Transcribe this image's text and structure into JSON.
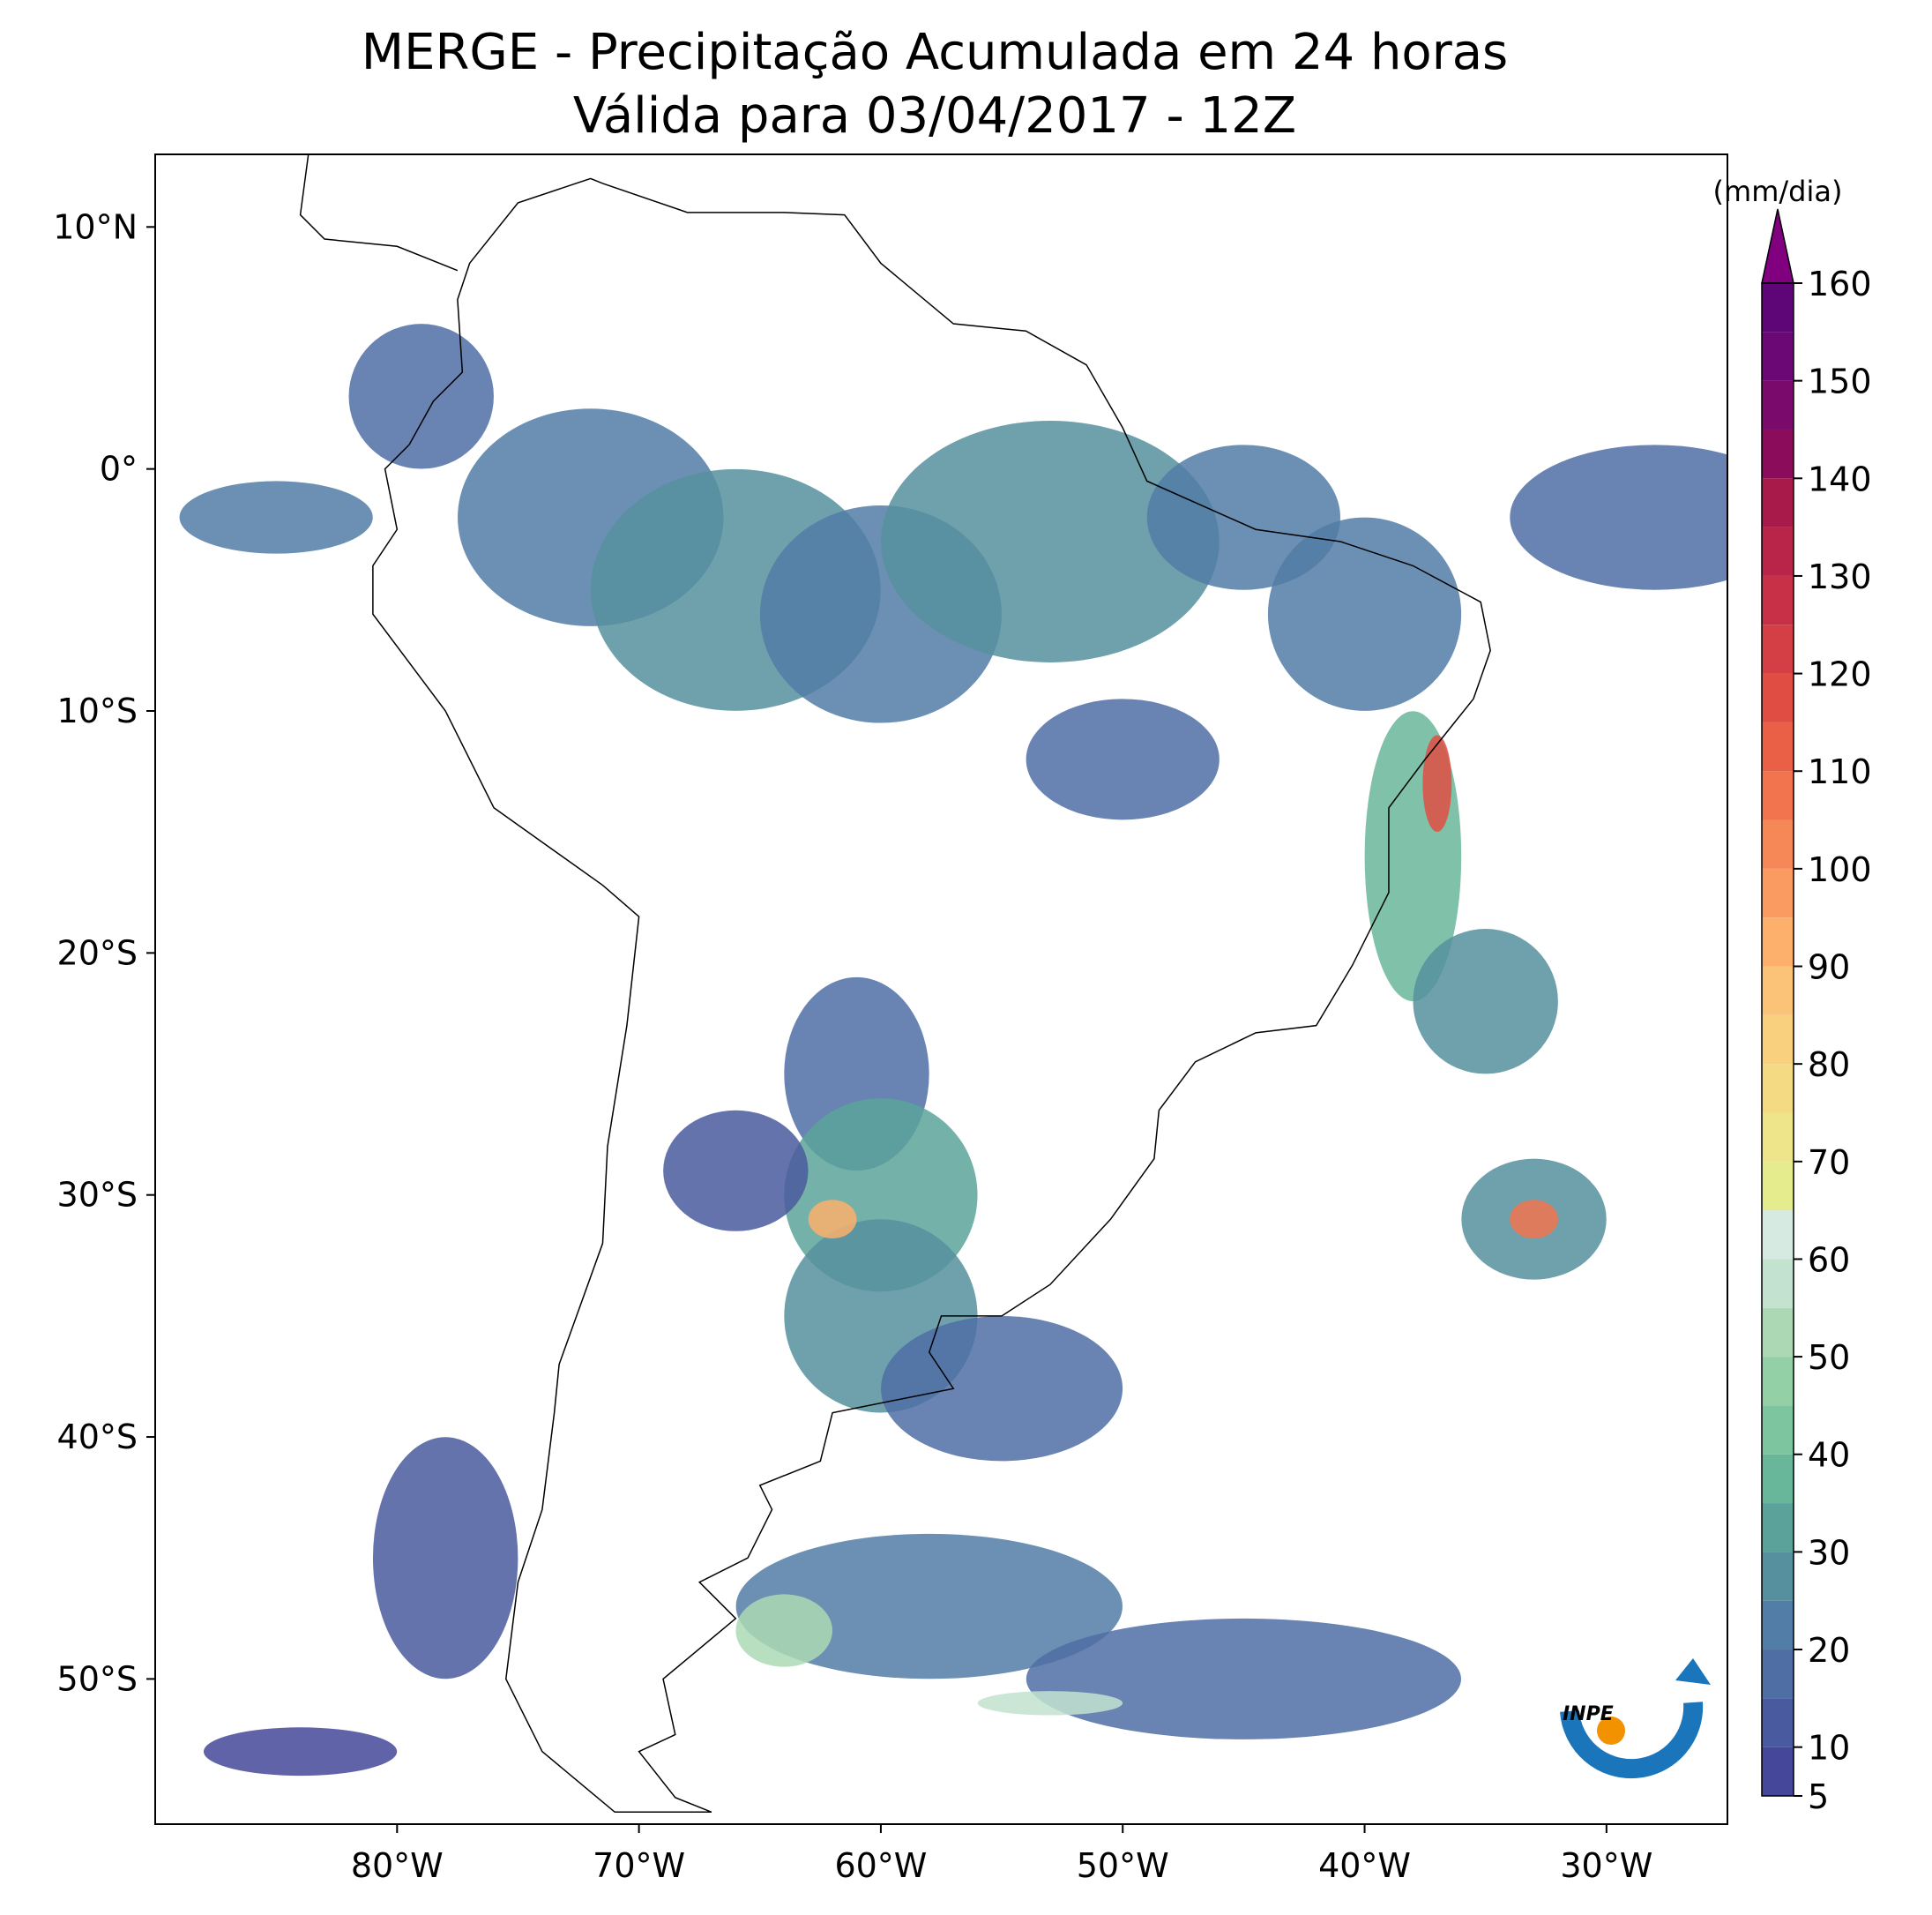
{
  "title": "MERGE - Precipitação Acumulada em 24 horas",
  "subtitle": "Válida para 03/04/2017 - 12Z",
  "map": {
    "xlim": [
      -90,
      -25
    ],
    "ylim": [
      -56,
      13
    ],
    "xticks": [
      {
        "value": -80,
        "label": "80°W"
      },
      {
        "value": -70,
        "label": "70°W"
      },
      {
        "value": -60,
        "label": "60°W"
      },
      {
        "value": -50,
        "label": "50°W"
      },
      {
        "value": -40,
        "label": "40°W"
      },
      {
        "value": -30,
        "label": "30°W"
      }
    ],
    "yticks": [
      {
        "value": 10,
        "label": "10°N"
      },
      {
        "value": 0,
        "label": "0°"
      },
      {
        "value": -10,
        "label": "10°S"
      },
      {
        "value": -20,
        "label": "20°S"
      },
      {
        "value": -30,
        "label": "30°S"
      },
      {
        "value": -40,
        "label": "40°S"
      },
      {
        "value": -50,
        "label": "50°S"
      }
    ]
  },
  "colorbar": {
    "label": "(mm/dia)",
    "levels": [
      5,
      10,
      15,
      20,
      25,
      30,
      35,
      40,
      45,
      50,
      55,
      60,
      65,
      70,
      75,
      80,
      85,
      90,
      95,
      100,
      105,
      110,
      115,
      120,
      125,
      130,
      135,
      140,
      145,
      150,
      155,
      160
    ],
    "ticks": [
      5,
      10,
      20,
      30,
      40,
      50,
      60,
      70,
      80,
      90,
      100,
      110,
      120,
      130,
      140,
      150,
      160
    ],
    "colors": [
      "#45489a",
      "#4a5a9e",
      "#4f6fa4",
      "#527da6",
      "#56909f",
      "#5ba39a",
      "#68b79a",
      "#7cc59e",
      "#94d0a6",
      "#acd9b4",
      "#c3e2cf",
      "#d6eae2",
      "#e4ec8e",
      "#eee58a",
      "#f3da83",
      "#f8d07e",
      "#fbc377",
      "#fcb06c",
      "#fa9c62",
      "#f68858",
      "#f1744e",
      "#e96046",
      "#df4d43",
      "#d43e45",
      "#c83047",
      "#b92449",
      "#a81a4a",
      "#8b0c5a",
      "#7a0a6c",
      "#6c0875",
      "#5e0678"
    ],
    "extend_color": "#800080"
  },
  "logo": "INPE"
}
